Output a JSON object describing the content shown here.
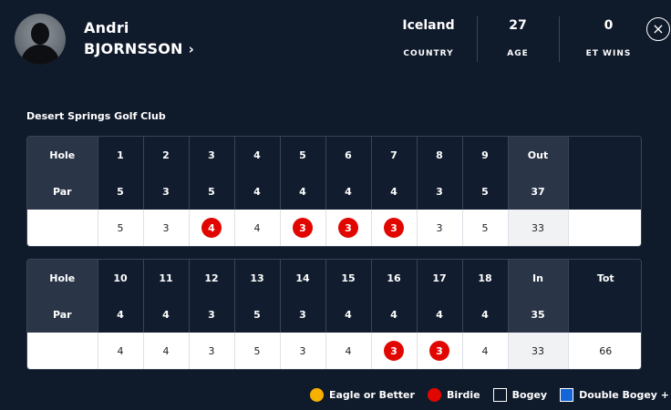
{
  "player": {
    "first_name": "Andri",
    "last_name": "BJORNSSON",
    "chevron": "›"
  },
  "stats": {
    "country_value": "Iceland",
    "country_label": "COUNTRY",
    "age_value": "27",
    "age_label": "AGE",
    "wins_value": "0",
    "wins_label": "ET WINS"
  },
  "close_icon": "×",
  "club": "Desert Springs Golf Club",
  "front": {
    "hole_label": "Hole",
    "par_label": "Par",
    "holes": [
      "1",
      "2",
      "3",
      "4",
      "5",
      "6",
      "7",
      "8",
      "9"
    ],
    "sum_label": "Out",
    "pars": [
      "5",
      "3",
      "5",
      "4",
      "4",
      "4",
      "4",
      "3",
      "5"
    ],
    "par_sum": "37",
    "scores": [
      "5",
      "3",
      "4",
      "4",
      "3",
      "3",
      "3",
      "3",
      "5"
    ],
    "score_sum": "33"
  },
  "back": {
    "hole_label": "Hole",
    "par_label": "Par",
    "holes": [
      "10",
      "11",
      "12",
      "13",
      "14",
      "15",
      "16",
      "17",
      "18"
    ],
    "sum_label": "In",
    "tot_label": "Tot",
    "pars": [
      "4",
      "4",
      "3",
      "5",
      "3",
      "4",
      "4",
      "4",
      "4"
    ],
    "par_sum": "35",
    "scores": [
      "4",
      "4",
      "3",
      "5",
      "3",
      "4",
      "3",
      "3",
      "4"
    ],
    "score_sum": "33",
    "total": "66"
  },
  "legend": {
    "eagle": "Eagle or Better",
    "birdie": "Birdie",
    "bogey": "Bogey",
    "double_bogey": "Double Bogey +"
  },
  "colors": {
    "background": "#0f1a2b",
    "birdie": "#e10600",
    "eagle": "#f5b000",
    "double_bogey": "#1565d8"
  }
}
